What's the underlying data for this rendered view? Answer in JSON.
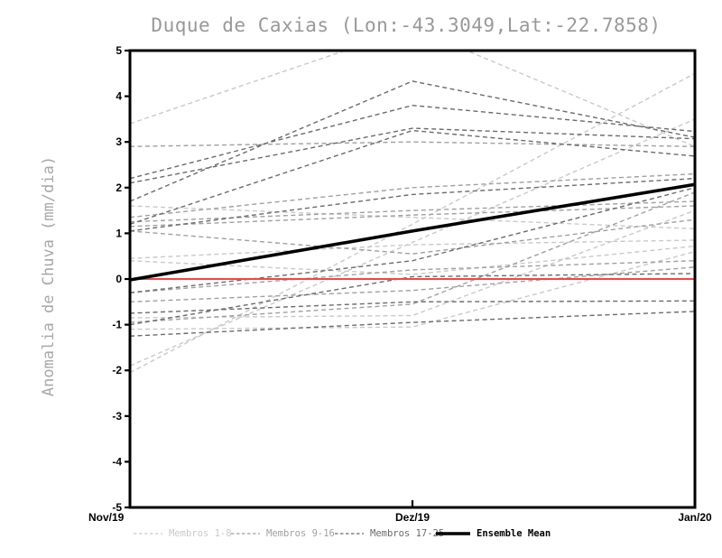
{
  "title": "Duque de Caxias (Lon:-43.3049,Lat:-22.7858)",
  "colors": {
    "background": "#ffffff",
    "title_text": "#999999",
    "axis": "#000000",
    "members_1_8": "#c9c9c9",
    "members_9_16": "#a0a0a0",
    "members_17_25": "#6b6b6b",
    "ensemble_mean": "#000000",
    "zero_line": "#f54545"
  },
  "chart_data": {
    "type": "line",
    "title": "Duque de Caxias (Lon:-43.3049,Lat:-22.7858)",
    "xlabel": "",
    "ylabel": "Anomalia de Chuva (mm/dia)",
    "ylim": [
      -5,
      5
    ],
    "y_ticks": [
      -5,
      -4,
      -3,
      -2,
      -1,
      0,
      1,
      2,
      3,
      4,
      5
    ],
    "x_categories": [
      "Nov/19",
      "Dez/19",
      "Jan/20"
    ],
    "grid": false,
    "legend_position": "bottom",
    "groups": [
      {
        "label": "Membros 1-8",
        "color": "#c9c9c9",
        "style": "dashed"
      },
      {
        "label": "Membros 9-16",
        "color": "#a0a0a0",
        "style": "dashed"
      },
      {
        "label": "Membros 17-25",
        "color": "#6b6b6b",
        "style": "dashed"
      }
    ],
    "members": [
      {
        "group": 0,
        "values": [
          -2.05,
          1.2,
          4.5
        ]
      },
      {
        "group": 0,
        "values": [
          -1.9,
          0.8,
          3.5
        ]
      },
      {
        "group": 0,
        "values": [
          3.4,
          5.5,
          2.9
        ]
      },
      {
        "group": 0,
        "values": [
          1.6,
          1.35,
          1.1
        ]
      },
      {
        "group": 0,
        "values": [
          0.45,
          0.75,
          0.85
        ]
      },
      {
        "group": 0,
        "values": [
          0.4,
          0.1,
          0.72
        ]
      },
      {
        "group": 0,
        "values": [
          -0.85,
          -0.8,
          1.5
        ]
      },
      {
        "group": 0,
        "values": [
          -1.1,
          -1.05,
          0.6
        ]
      },
      {
        "group": 1,
        "values": [
          2.9,
          3.0,
          2.9
        ]
      },
      {
        "group": 1,
        "values": [
          1.25,
          1.5,
          1.7
        ]
      },
      {
        "group": 1,
        "values": [
          1.05,
          0.55,
          1.3
        ]
      },
      {
        "group": 1,
        "values": [
          -0.3,
          0.2,
          0.4
        ]
      },
      {
        "group": 1,
        "values": [
          -0.5,
          -0.25,
          0.26
        ]
      },
      {
        "group": 1,
        "values": [
          1.15,
          1.4,
          1.6
        ]
      },
      {
        "group": 1,
        "values": [
          -0.95,
          -0.55,
          1.9
        ]
      },
      {
        "group": 1,
        "values": [
          1.35,
          2.0,
          2.3
        ]
      },
      {
        "group": 2,
        "values": [
          1.7,
          4.33,
          3.1
        ]
      },
      {
        "group": 2,
        "values": [
          2.2,
          3.8,
          3.23
        ]
      },
      {
        "group": 2,
        "values": [
          2.1,
          3.3,
          3.07
        ]
      },
      {
        "group": 2,
        "values": [
          1.2,
          3.25,
          2.69
        ]
      },
      {
        "group": 2,
        "values": [
          1.05,
          1.85,
          2.2
        ]
      },
      {
        "group": 2,
        "values": [
          -0.3,
          0.4,
          2.0
        ]
      },
      {
        "group": 2,
        "values": [
          -0.75,
          -0.5,
          -0.48
        ]
      },
      {
        "group": 2,
        "values": [
          -1.25,
          -0.95,
          -0.71
        ]
      },
      {
        "group": 2,
        "values": [
          -1.0,
          0.05,
          0.12
        ]
      }
    ],
    "ensemble_mean": {
      "label": "Ensemble Mean",
      "color": "#000000",
      "style": "solid-thick",
      "values": [
        -0.02,
        1.05,
        2.07
      ]
    },
    "zero_line": {
      "value": 0,
      "color": "#f54545"
    }
  }
}
